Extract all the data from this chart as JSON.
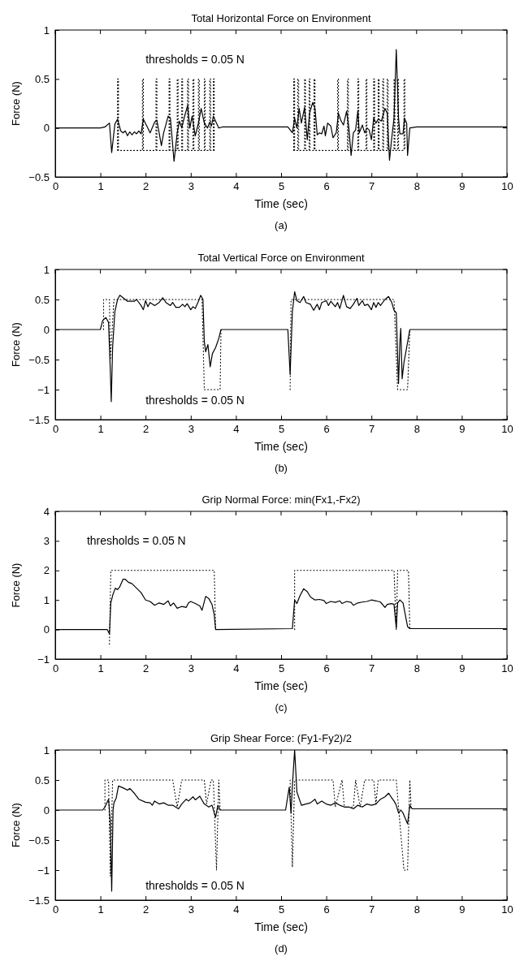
{
  "chart_data": [
    {
      "type": "line",
      "title": "Total Horizontal Force on Environment",
      "xlabel": "Time (sec)",
      "ylabel": "Force (N)",
      "annotations": [
        "thresholds = 0.05 N",
        "(a)"
      ],
      "xlim": [
        0,
        10
      ],
      "xticks": [
        0,
        1,
        2,
        3,
        4,
        5,
        6,
        7,
        8,
        9,
        10
      ],
      "ylim": [
        -0.5,
        1
      ],
      "yticks": [
        -0.5,
        0,
        0.5,
        1
      ],
      "grid": false,
      "series": [
        {
          "color": "#000000",
          "line_style": "solid",
          "x": [
            0,
            1.0,
            1.1,
            1.2,
            1.25,
            1.32,
            1.38,
            1.45,
            1.5,
            1.55,
            1.6,
            1.65,
            1.7,
            1.75,
            1.8,
            1.85,
            1.9,
            1.95,
            2.05,
            2.1,
            2.2,
            2.25,
            2.35,
            2.4,
            2.5,
            2.55,
            2.63,
            2.7,
            2.75,
            2.8,
            2.87,
            2.93,
            2.98,
            3.03,
            3.1,
            3.17,
            3.23,
            3.3,
            3.37,
            3.42,
            3.46,
            3.5,
            3.57,
            3.62,
            3.7,
            5.15,
            5.25,
            5.3,
            5.35,
            5.4,
            5.45,
            5.52,
            5.58,
            5.63,
            5.7,
            5.75,
            5.8,
            5.85,
            5.9,
            5.95,
            5.98,
            6.03,
            6.1,
            6.15,
            6.22,
            6.27,
            6.32,
            6.38,
            6.45,
            6.5,
            6.55,
            6.6,
            6.65,
            6.7,
            6.73,
            6.8,
            6.85,
            6.9,
            6.95,
            7.0,
            7.05,
            7.1,
            7.15,
            7.22,
            7.3,
            7.35,
            7.4,
            7.45,
            7.5,
            7.55,
            7.6,
            7.63,
            7.7,
            7.73,
            7.78,
            7.8,
            7.85,
            8.0,
            10
          ],
          "values": [
            0,
            0,
            0.01,
            0.05,
            -0.25,
            0.04,
            0.09,
            -0.03,
            -0.05,
            -0.03,
            -0.08,
            -0.04,
            -0.07,
            -0.04,
            -0.06,
            -0.03,
            -0.06,
            0.09,
            0.0,
            -0.05,
            0.06,
            0.08,
            -0.18,
            -0.05,
            0.12,
            0.1,
            -0.34,
            -0.05,
            0.07,
            0.0,
            0.13,
            0.23,
            0.0,
            0.12,
            -0.08,
            0.05,
            0.2,
            0.05,
            0.0,
            0.06,
            0.02,
            0.12,
            0.05,
            0.0,
            0.01,
            0.01,
            -0.05,
            0.1,
            0.0,
            0.2,
            0.05,
            0.21,
            -0.12,
            0.15,
            0.26,
            0.2,
            -0.07,
            -0.05,
            -0.06,
            0.02,
            -0.08,
            0.05,
            0.02,
            -0.1,
            -0.05,
            0.15,
            0.08,
            0.03,
            0.17,
            0.0,
            -0.28,
            -0.05,
            -0.02,
            0.18,
            -0.05,
            0.03,
            -0.05,
            0.0,
            -0.02,
            -0.12,
            0.1,
            0.05,
            0.09,
            0.07,
            0.2,
            0.15,
            -0.33,
            -0.1,
            0.1,
            0.8,
            0.1,
            -0.06,
            -0.06,
            0.1,
            0.05,
            -0.28,
            0.0,
            0.01,
            0.01
          ]
        },
        {
          "color": "#000000",
          "line_style": "dotted",
          "x": [
            1.38,
            1.38,
            1.4,
            1.4,
            1.93,
            1.93,
            1.95,
            1.95,
            2.23,
            2.23,
            2.25,
            2.25,
            2.52,
            2.52,
            2.54,
            2.54,
            2.7,
            2.7,
            2.72,
            2.72,
            2.8,
            2.8,
            2.82,
            2.82,
            2.93,
            2.93,
            2.95,
            2.95,
            3.05,
            3.05,
            3.07,
            3.07,
            3.17,
            3.17,
            3.19,
            3.19,
            3.3,
            3.3,
            3.32,
            3.32,
            3.42,
            3.42,
            3.44,
            3.44,
            3.5,
            3.5,
            3.52,
            3.52,
            4.0,
            5.28,
            5.28,
            5.3,
            5.3,
            5.37,
            5.37,
            5.39,
            5.39,
            5.52,
            5.52,
            5.54,
            5.54,
            5.62,
            5.62,
            5.64,
            5.64,
            5.73,
            5.73,
            5.75,
            5.75,
            6.25,
            6.25,
            6.27,
            6.27,
            6.47,
            6.47,
            6.49,
            6.49,
            6.7,
            6.7,
            6.72,
            6.72,
            6.88,
            6.88,
            6.9,
            6.9,
            7.05,
            7.05,
            7.07,
            7.07,
            7.15,
            7.15,
            7.17,
            7.17,
            7.25,
            7.25,
            7.27,
            7.27,
            7.35,
            7.35,
            7.37,
            7.37,
            7.5,
            7.5,
            7.52,
            7.52,
            7.58,
            7.58,
            7.6,
            7.6,
            7.72,
            7.72,
            7.74,
            7.74
          ],
          "values": [
            -0.23,
            0.5,
            0.5,
            -0.23,
            -0.23,
            0.5,
            0.5,
            -0.23,
            -0.23,
            0.5,
            0.5,
            -0.23,
            -0.23,
            0.5,
            0.5,
            -0.23,
            -0.23,
            0.5,
            0.5,
            -0.23,
            -0.23,
            0.5,
            0.5,
            -0.23,
            -0.23,
            0.5,
            0.5,
            -0.23,
            -0.23,
            0.5,
            0.5,
            -0.23,
            -0.23,
            0.5,
            0.5,
            -0.23,
            -0.23,
            0.5,
            0.5,
            -0.23,
            -0.23,
            0.5,
            0.5,
            -0.23,
            -0.23,
            0.5,
            0.5,
            -0.23,
            null,
            -0.23,
            0.5,
            0.5,
            -0.23,
            -0.23,
            0.5,
            0.5,
            -0.23,
            -0.23,
            0.5,
            0.5,
            -0.23,
            -0.23,
            0.5,
            0.5,
            -0.23,
            -0.23,
            0.5,
            0.5,
            -0.23,
            -0.23,
            0.5,
            0.5,
            -0.23,
            -0.23,
            0.5,
            0.5,
            -0.23,
            -0.23,
            0.5,
            0.5,
            -0.23,
            -0.23,
            0.5,
            0.5,
            -0.23,
            -0.23,
            0.5,
            0.5,
            -0.23,
            -0.23,
            0.5,
            0.5,
            -0.23,
            -0.23,
            0.5,
            0.5,
            -0.23,
            -0.23,
            0.5,
            0.5,
            -0.23,
            -0.23,
            0.5,
            0.5,
            -0.23,
            -0.23,
            0.5,
            0.5,
            -0.23,
            -0.23,
            0.5,
            0.5,
            -0.23
          ]
        }
      ]
    },
    {
      "type": "line",
      "title": "Total Vertical Force on Environment",
      "xlabel": "Time (sec)",
      "ylabel": "Force (N)",
      "annotations": [
        "thresholds = 0.05 N",
        "(b)"
      ],
      "xlim": [
        0,
        10
      ],
      "xticks": [
        0,
        1,
        2,
        3,
        4,
        5,
        6,
        7,
        8,
        9,
        10
      ],
      "ylim": [
        -1.5,
        1
      ],
      "yticks": [
        -1.5,
        -1,
        -0.5,
        0,
        0.5,
        1
      ],
      "grid": false,
      "series": [
        {
          "color": "#000000",
          "line_style": "solid",
          "x": [
            0,
            1.0,
            1.05,
            1.12,
            1.18,
            1.22,
            1.24,
            1.27,
            1.32,
            1.38,
            1.43,
            1.5,
            1.6,
            1.75,
            1.8,
            1.9,
            1.95,
            2.0,
            2.05,
            2.1,
            2.2,
            2.3,
            2.38,
            2.45,
            2.55,
            2.6,
            2.67,
            2.75,
            2.82,
            2.87,
            2.92,
            3.0,
            3.05,
            3.1,
            3.17,
            3.22,
            3.27,
            3.3,
            3.33,
            3.38,
            3.43,
            3.48,
            3.55,
            3.62,
            3.67,
            5.15,
            5.2,
            5.25,
            5.3,
            5.35,
            5.42,
            5.5,
            5.55,
            5.65,
            5.72,
            5.8,
            5.85,
            5.9,
            6.0,
            6.05,
            6.1,
            6.2,
            6.25,
            6.3,
            6.38,
            6.45,
            6.53,
            6.6,
            6.68,
            6.72,
            6.8,
            6.85,
            6.92,
            7.0,
            7.05,
            7.1,
            7.15,
            7.2,
            7.3,
            7.38,
            7.45,
            7.5,
            7.55,
            7.6,
            7.63,
            7.65,
            7.68,
            7.72,
            7.78,
            7.85,
            10
          ],
          "values": [
            0,
            0,
            0.15,
            0.2,
            0.12,
            -0.7,
            -1.2,
            -0.3,
            0.3,
            0.5,
            0.57,
            0.53,
            0.47,
            0.47,
            0.5,
            0.4,
            0.33,
            0.48,
            0.38,
            0.45,
            0.4,
            0.45,
            0.53,
            0.45,
            0.4,
            0.45,
            0.37,
            0.37,
            0.42,
            0.38,
            0.43,
            0.33,
            0.38,
            0.35,
            0.47,
            0.57,
            0.5,
            -0.2,
            -0.37,
            -0.25,
            -0.62,
            -0.4,
            -0.3,
            -0.15,
            0.0,
            0.0,
            -0.75,
            0.3,
            0.63,
            0.48,
            0.45,
            0.55,
            0.45,
            0.42,
            0.32,
            0.42,
            0.33,
            0.45,
            0.48,
            0.4,
            0.47,
            0.38,
            0.45,
            0.35,
            0.57,
            0.38,
            0.35,
            0.42,
            0.52,
            0.4,
            0.48,
            0.4,
            0.42,
            0.33,
            0.45,
            0.37,
            0.45,
            0.4,
            0.5,
            0.55,
            0.45,
            0.32,
            0.28,
            -0.9,
            -0.2,
            0.02,
            -0.82,
            -0.55,
            -0.3,
            0.0,
            0.0
          ]
        },
        {
          "color": "#000000",
          "line_style": "dotted",
          "x": [
            1.07,
            1.07,
            1.2,
            1.22,
            1.3,
            3.25,
            3.3,
            3.65,
            3.67,
            4.5,
            5.2,
            5.22,
            7.5,
            7.58,
            7.8,
            7.85
          ],
          "values": [
            0,
            0.5,
            0.5,
            -0.5,
            0.5,
            0.5,
            -1,
            -1,
            0,
            null,
            -1,
            0.5,
            0.5,
            -1,
            -1,
            0
          ]
        }
      ]
    },
    {
      "type": "line",
      "title": "Grip Normal Force: min(Fx1,-Fx2)",
      "xlabel": "Time (sec)",
      "ylabel": "Force (N)",
      "annotations": [
        "thresholds = 0.05 N",
        "(c)"
      ],
      "xlim": [
        0,
        10
      ],
      "xticks": [
        0,
        1,
        2,
        3,
        4,
        5,
        6,
        7,
        8,
        9,
        10
      ],
      "ylim": [
        -1,
        4
      ],
      "yticks": [
        -1,
        0,
        1,
        2,
        3,
        4
      ],
      "grid": false,
      "series": [
        {
          "color": "#000000",
          "line_style": "solid",
          "x": [
            0,
            1.15,
            1.2,
            1.23,
            1.28,
            1.33,
            1.38,
            1.43,
            1.5,
            1.55,
            1.62,
            1.7,
            1.8,
            1.9,
            2.0,
            2.1,
            2.2,
            2.3,
            2.4,
            2.5,
            2.55,
            2.62,
            2.7,
            2.8,
            2.9,
            2.95,
            3.0,
            3.1,
            3.2,
            3.25,
            3.33,
            3.4,
            3.47,
            3.52,
            3.55,
            5.25,
            5.3,
            5.35,
            5.42,
            5.5,
            5.58,
            5.65,
            5.75,
            5.85,
            5.95,
            6.0,
            6.1,
            6.2,
            6.3,
            6.35,
            6.45,
            6.55,
            6.6,
            6.7,
            6.8,
            6.9,
            7.0,
            7.1,
            7.2,
            7.3,
            7.35,
            7.45,
            7.5,
            7.55,
            7.58,
            7.63,
            7.7,
            7.75,
            7.8,
            7.85,
            10
          ],
          "values": [
            0,
            0,
            -0.15,
            0.9,
            1.2,
            1.4,
            1.35,
            1.45,
            1.7,
            1.7,
            1.6,
            1.55,
            1.4,
            1.25,
            1.0,
            0.95,
            0.82,
            0.9,
            0.85,
            0.97,
            0.8,
            0.9,
            0.72,
            0.78,
            0.75,
            0.9,
            0.95,
            0.88,
            0.8,
            0.65,
            1.12,
            1.05,
            0.85,
            0.5,
            0.0,
            0.03,
            1.0,
            0.88,
            1.15,
            1.38,
            1.28,
            1.1,
            1.0,
            1.02,
            0.98,
            0.88,
            0.95,
            0.92,
            0.97,
            0.88,
            0.95,
            0.92,
            0.82,
            0.9,
            0.93,
            0.95,
            1.0,
            0.97,
            0.93,
            0.75,
            0.85,
            0.88,
            0.85,
            0.05,
            0.9,
            1.0,
            0.9,
            0.5,
            0.1,
            0.03,
            0.03
          ]
        },
        {
          "color": "#000000",
          "line_style": "dotted",
          "x": [
            1.2,
            1.23,
            3.52,
            3.55,
            4.5,
            5.3,
            5.3,
            7.5,
            7.55,
            7.58,
            7.82,
            7.85
          ],
          "values": [
            -0.5,
            2,
            2,
            0,
            null,
            0,
            2,
            2,
            0,
            2,
            2,
            0
          ]
        }
      ]
    },
    {
      "type": "line",
      "title": "Grip Shear Force: (Fy1-Fy2)/2",
      "xlabel": "Time (sec)",
      "ylabel": "Force (N)",
      "annotations": [
        "thresholds = 0.05 N",
        "(d)"
      ],
      "xlim": [
        0,
        10
      ],
      "xticks": [
        0,
        1,
        2,
        3,
        4,
        5,
        6,
        7,
        8,
        9,
        10
      ],
      "ylim": [
        -1.5,
        1
      ],
      "yticks": [
        -1.5,
        -1,
        -0.5,
        0,
        0.5,
        1
      ],
      "grid": false,
      "series": [
        {
          "color": "#000000",
          "line_style": "solid",
          "x": [
            0,
            1.05,
            1.1,
            1.18,
            1.22,
            1.25,
            1.28,
            1.3,
            1.35,
            1.4,
            1.5,
            1.6,
            1.65,
            1.75,
            1.85,
            2.0,
            2.1,
            2.15,
            2.2,
            2.3,
            2.4,
            2.5,
            2.6,
            2.73,
            2.8,
            2.9,
            2.95,
            3.05,
            3.1,
            3.2,
            3.3,
            3.4,
            3.47,
            3.55,
            3.6,
            3.65,
            5.1,
            5.18,
            5.22,
            5.25,
            5.3,
            5.35,
            5.45,
            5.55,
            5.65,
            5.75,
            5.8,
            5.9,
            6.0,
            6.1,
            6.2,
            6.3,
            6.4,
            6.5,
            6.6,
            6.7,
            6.8,
            6.9,
            7.0,
            7.1,
            7.2,
            7.3,
            7.38,
            7.45,
            7.5,
            7.55,
            7.6,
            7.65,
            7.7,
            7.8,
            7.85,
            7.9,
            10
          ],
          "values": [
            0,
            0,
            0.05,
            0.18,
            -0.2,
            -1.35,
            0.0,
            0.12,
            0.2,
            0.4,
            0.37,
            0.33,
            0.36,
            0.28,
            0.18,
            0.13,
            0.12,
            0.08,
            0.15,
            0.1,
            0.12,
            0.08,
            0.08,
            0.02,
            0.1,
            0.18,
            0.15,
            0.22,
            0.17,
            0.23,
            0.1,
            0.05,
            0.08,
            -0.12,
            0.08,
            0.0,
            0.0,
            0.38,
            -0.05,
            0.4,
            1.0,
            0.3,
            0.08,
            0.1,
            0.12,
            0.18,
            0.1,
            0.15,
            0.1,
            0.08,
            0.12,
            0.08,
            0.05,
            0.05,
            0.02,
            0.08,
            0.05,
            0.1,
            0.08,
            0.1,
            0.18,
            0.22,
            0.28,
            0.2,
            0.15,
            0.08,
            -0.05,
            0.0,
            -0.05,
            -0.23,
            0.08,
            0.02,
            0.02
          ]
        },
        {
          "color": "#000000",
          "line_style": "dotted",
          "x": [
            1.1,
            1.1,
            1.18,
            1.22,
            1.27,
            2.6,
            2.7,
            2.8,
            3.3,
            3.35,
            3.45,
            3.5,
            3.57,
            3.62,
            3.65,
            4.5,
            5.2,
            5.25,
            5.3,
            6.15,
            6.2,
            6.35,
            6.4,
            6.6,
            6.65,
            6.75,
            6.85,
            7.05,
            7.1,
            7.15,
            7.55,
            7.6,
            7.72,
            7.8,
            7.85,
            7.88
          ],
          "values": [
            0,
            0.5,
            0.5,
            -1.1,
            0.5,
            0.5,
            0.05,
            0.5,
            0.5,
            0.1,
            0.5,
            0.5,
            -1.0,
            0.5,
            0.0,
            null,
            0.5,
            -0.95,
            0.5,
            0.5,
            0.05,
            0.5,
            0.05,
            0.05,
            0.5,
            0.05,
            0.5,
            0.5,
            0.1,
            0.5,
            0.5,
            0.05,
            -1.0,
            -1.0,
            0.5,
            0
          ]
        }
      ]
    }
  ]
}
